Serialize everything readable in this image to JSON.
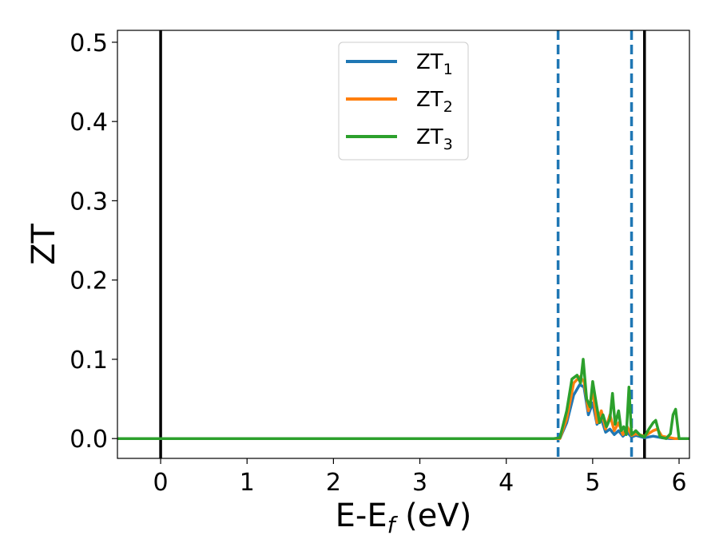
{
  "chart_data": {
    "type": "line",
    "xlabel": {
      "main": "E-E",
      "sub": "f",
      "unit": " (eV)"
    },
    "ylabel": "ZT",
    "xlim": [
      -0.5,
      6.12
    ],
    "ylim": [
      -0.025,
      0.515
    ],
    "x_ticks": [
      0,
      1,
      2,
      3,
      4,
      5,
      6
    ],
    "x_tick_labels": [
      "0",
      "1",
      "2",
      "3",
      "4",
      "5",
      "6"
    ],
    "y_ticks": [
      0.0,
      0.1,
      0.2,
      0.3,
      0.4,
      0.5
    ],
    "y_tick_labels": [
      "0.0",
      "0.1",
      "0.2",
      "0.3",
      "0.4",
      "0.5"
    ],
    "grid": false,
    "legend_position": "top-center",
    "vertical_lines": [
      {
        "x": 0.0,
        "style": "solid",
        "color": "#000000"
      },
      {
        "x": 4.6,
        "style": "dashed",
        "color": "#1f77b4"
      },
      {
        "x": 5.45,
        "style": "dashed",
        "color": "#1f77b4"
      },
      {
        "x": 5.6,
        "style": "solid",
        "color": "#000000"
      }
    ],
    "series": [
      {
        "name": "ZT",
        "sub": "1",
        "color": "#1f77b4",
        "x": [
          -0.5,
          4.55,
          4.62,
          4.7,
          4.78,
          4.85,
          4.9,
          4.95,
          5.0,
          5.05,
          5.1,
          5.15,
          5.2,
          5.25,
          5.3,
          5.35,
          5.4,
          5.45,
          5.5,
          5.6,
          5.7,
          5.8,
          5.9,
          5.95,
          6.0,
          6.12
        ],
        "y": [
          0.0,
          0.0,
          0.0,
          0.02,
          0.055,
          0.068,
          0.065,
          0.03,
          0.045,
          0.018,
          0.025,
          0.008,
          0.012,
          0.005,
          0.01,
          0.003,
          0.008,
          0.002,
          0.004,
          0.001,
          0.003,
          0.001,
          0.0,
          0.0,
          0.0,
          0.0
        ]
      },
      {
        "name": "ZT",
        "sub": "2",
        "color": "#ff7f0e",
        "x": [
          -0.5,
          4.55,
          4.62,
          4.7,
          4.78,
          4.85,
          4.9,
          4.95,
          5.0,
          5.05,
          5.1,
          5.15,
          5.2,
          5.25,
          5.3,
          5.35,
          5.4,
          5.45,
          5.5,
          5.6,
          5.7,
          5.75,
          5.8,
          5.9,
          5.95,
          6.0,
          6.12
        ],
        "y": [
          0.0,
          0.0,
          0.0,
          0.025,
          0.07,
          0.078,
          0.072,
          0.035,
          0.06,
          0.02,
          0.035,
          0.012,
          0.03,
          0.01,
          0.02,
          0.005,
          0.015,
          0.004,
          0.006,
          0.003,
          0.01,
          0.012,
          0.003,
          0.001,
          0.0,
          0.0,
          0.0
        ]
      },
      {
        "name": "ZT",
        "sub": "3",
        "color": "#2ca02c",
        "x": [
          -0.5,
          4.55,
          4.62,
          4.7,
          4.76,
          4.82,
          4.86,
          4.89,
          4.93,
          4.97,
          5.0,
          5.04,
          5.08,
          5.12,
          5.16,
          5.2,
          5.23,
          5.26,
          5.3,
          5.33,
          5.36,
          5.39,
          5.42,
          5.45,
          5.5,
          5.55,
          5.6,
          5.65,
          5.7,
          5.73,
          5.78,
          5.85,
          5.9,
          5.93,
          5.96,
          6.0,
          6.12
        ],
        "y": [
          0.0,
          0.0,
          0.001,
          0.035,
          0.075,
          0.08,
          0.07,
          0.1,
          0.05,
          0.04,
          0.072,
          0.045,
          0.02,
          0.03,
          0.015,
          0.025,
          0.057,
          0.018,
          0.035,
          0.01,
          0.015,
          0.005,
          0.065,
          0.005,
          0.01,
          0.004,
          0.002,
          0.012,
          0.02,
          0.023,
          0.002,
          0.0,
          0.006,
          0.03,
          0.037,
          0.0,
          0.0
        ]
      }
    ]
  }
}
